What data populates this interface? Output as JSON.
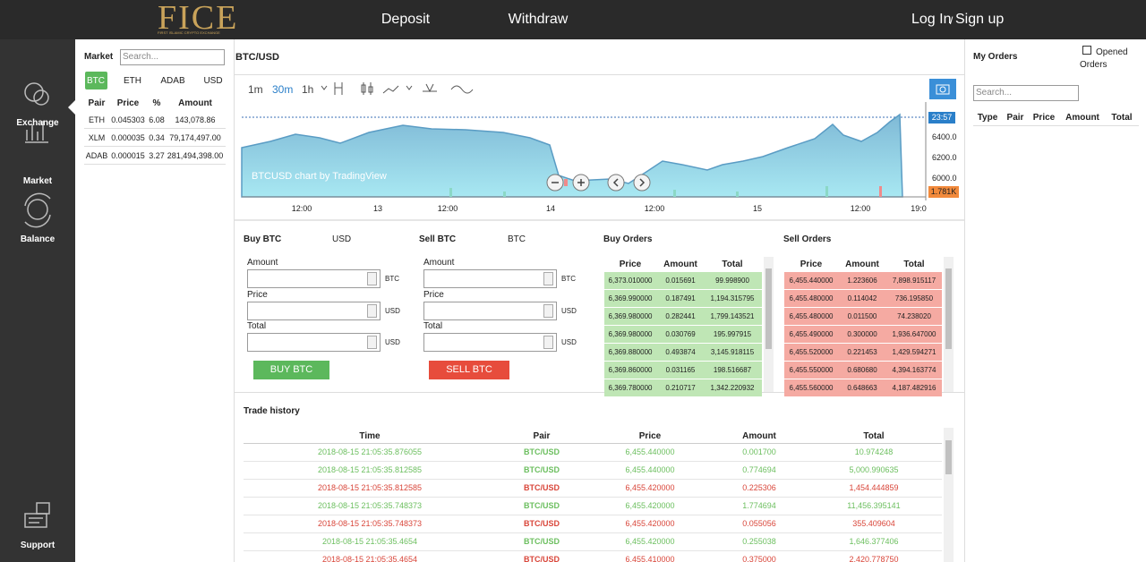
{
  "nav": {
    "logo": "FICE",
    "logo_sub": "FIRST ISLAMIC CRYPTO EXCHANGE",
    "links": [
      "Deposit",
      "Withdraw"
    ],
    "login": "Log In",
    "separator": "/",
    "signup": "Sign up"
  },
  "sidebar": {
    "items": [
      "Exchange",
      "Market",
      "Balance",
      "Support"
    ]
  },
  "market": {
    "label": "Market",
    "search": "Search...",
    "tabs": [
      "BTC",
      "ETH",
      "ADAB",
      "USD"
    ],
    "headers": [
      "Pair",
      "Price",
      "%",
      "Amount"
    ],
    "rows": [
      [
        "ETH",
        "0.045303",
        "6.08",
        "143,078.86"
      ],
      [
        "XLM",
        "0.000035",
        "0.34",
        "79,174,497.00"
      ],
      [
        "ADAB",
        "0.000015",
        "3.27",
        "281,494,398.00"
      ]
    ]
  },
  "chart": {
    "title": "BTC/USD",
    "intervals": [
      "1m",
      "30m",
      "1h"
    ],
    "watermark": "BTCUSD chart by TradingView",
    "last_time": "23:57",
    "price_labels": [
      "6400.0",
      "6200.0",
      "6000.0"
    ],
    "volume_label": "1.781K",
    "time_labels": [
      "12:00",
      "13",
      "12:00",
      "14",
      "12:00",
      "15",
      "12:00",
      "19:0"
    ]
  },
  "buy": {
    "title": "Buy BTC",
    "currency": "USD",
    "fields": [
      "Amount",
      "Price",
      "Total"
    ],
    "units": [
      "BTC",
      "USD",
      "USD"
    ],
    "button": "BUY BTC"
  },
  "sell": {
    "title": "Sell BTC",
    "currency": "BTC",
    "fields": [
      "Amount",
      "Price",
      "Total"
    ],
    "units": [
      "BTC",
      "USD",
      "USD"
    ],
    "button": "SELL BTC"
  },
  "buy_orders": {
    "title": "Buy Orders",
    "headers": [
      "Price",
      "Amount",
      "Total"
    ],
    "rows": [
      [
        "6,373.010000",
        "0.015691",
        "99.998900"
      ],
      [
        "6,369.990000",
        "0.187491",
        "1,194.315795"
      ],
      [
        "6,369.980000",
        "0.282441",
        "1,799.143521"
      ],
      [
        "6,369.980000",
        "0.030769",
        "195.997915"
      ],
      [
        "6,369.880000",
        "0.493874",
        "3,145.918115"
      ],
      [
        "6,369.860000",
        "0.031165",
        "198.516687"
      ],
      [
        "6,369.780000",
        "0.210717",
        "1,342.220932"
      ]
    ]
  },
  "sell_orders": {
    "title": "Sell Orders",
    "headers": [
      "Price",
      "Amount",
      "Total"
    ],
    "rows": [
      [
        "6,455.440000",
        "1.223606",
        "7,898.915117"
      ],
      [
        "6,455.480000",
        "0.114042",
        "736.195850"
      ],
      [
        "6,455.480000",
        "0.011500",
        "74.238020"
      ],
      [
        "6,455.490000",
        "0.300000",
        "1,936.647000"
      ],
      [
        "6,455.520000",
        "0.221453",
        "1,429.594271"
      ],
      [
        "6,455.550000",
        "0.680680",
        "4,394.163774"
      ],
      [
        "6,455.560000",
        "0.648663",
        "4,187.482916"
      ]
    ]
  },
  "trade_history": {
    "title": "Trade history",
    "headers": [
      "Time",
      "Pair",
      "Price",
      "Amount",
      "Total"
    ],
    "rows": [
      [
        "2018-08-15 21:05:35.876055",
        "BTC/USD",
        "6,455.440000",
        "0.001700",
        "10.974248"
      ],
      [
        "2018-08-15 21:05:35.812585",
        "BTC/USD",
        "6,455.440000",
        "0.774694",
        "5,000.990635"
      ],
      [
        "2018-08-15 21:05:35.812585",
        "BTC/USD",
        "6,455.420000",
        "0.225306",
        "1,454.444859"
      ],
      [
        "2018-08-15 21:05:35.748373",
        "BTC/USD",
        "6,455.420000",
        "1.774694",
        "11,456.395141"
      ],
      [
        "2018-08-15 21:05:35.748373",
        "BTC/USD",
        "6,455.420000",
        "0.055056",
        "355.409604"
      ],
      [
        "2018-08-15 21:05:35.4654",
        "BTC/USD",
        "6,455.420000",
        "0.255038",
        "1,646.377406"
      ],
      [
        "2018-08-15 21:05:35.4654",
        "BTC/USD",
        "6,455.410000",
        "0.375000",
        "2,420.778750"
      ]
    ],
    "row_colors": [
      "#6cbf5f",
      "#6cbf5f",
      "#d9463a",
      "#6cbf5f",
      "#d9463a",
      "#6cbf5f",
      "#d9463a"
    ]
  },
  "my_orders": {
    "title": "My Orders",
    "checkbox": [
      "Opened",
      "Orders"
    ],
    "search": "Search...",
    "headers": [
      "Type",
      "Pair",
      "Price",
      "Amount",
      "Total"
    ]
  }
}
